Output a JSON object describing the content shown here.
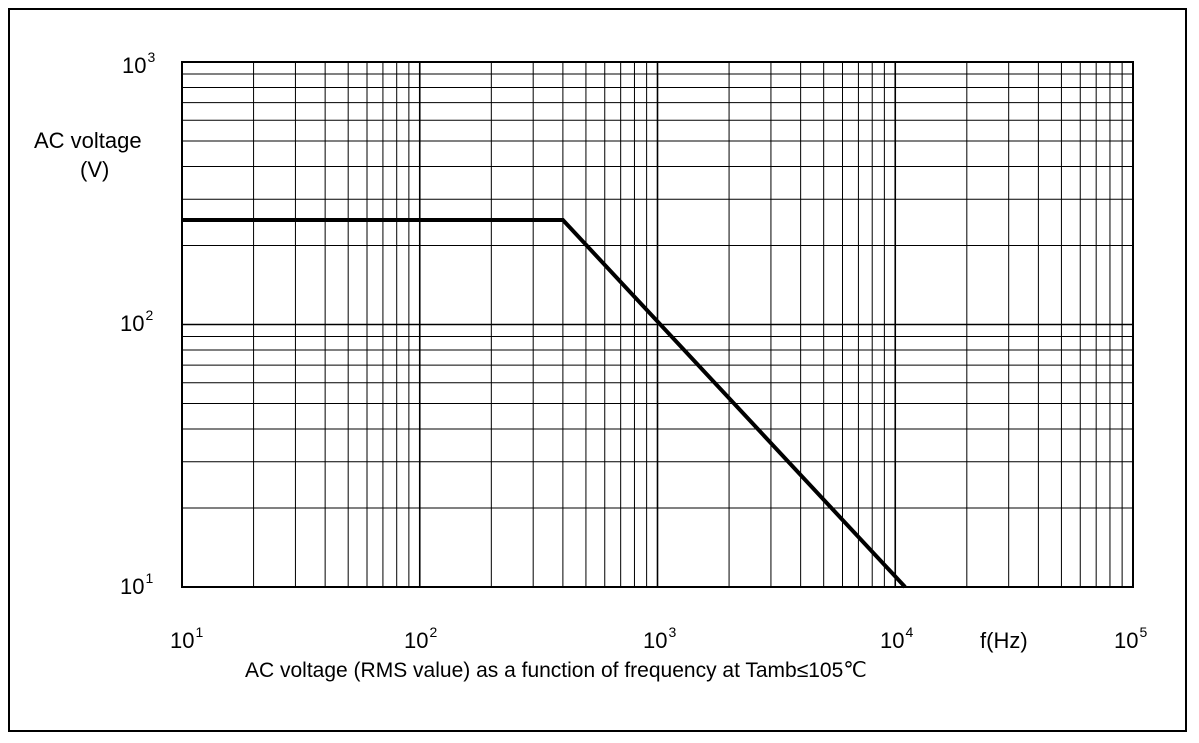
{
  "chart_data": {
    "type": "line",
    "title": "",
    "caption": "AC voltage (RMS value) as a function of frequency at Tamb≤105℃",
    "xlabel": "f(Hz)",
    "ylabel_line1": "AC voltage",
    "ylabel_line2": "(V)",
    "x_scale": "log",
    "y_scale": "log",
    "xlim": [
      10,
      100000
    ],
    "ylim": [
      10,
      1000
    ],
    "grid": true,
    "x_ticks": [
      {
        "base": "10",
        "exp": "1"
      },
      {
        "base": "10",
        "exp": "2"
      },
      {
        "base": "10",
        "exp": "3"
      },
      {
        "base": "10",
        "exp": "4"
      },
      {
        "base": "10",
        "exp": "5"
      }
    ],
    "y_ticks": [
      {
        "base": "10",
        "exp": "1"
      },
      {
        "base": "10",
        "exp": "2"
      },
      {
        "base": "10",
        "exp": "3"
      }
    ],
    "series": [
      {
        "x": [
          10,
          400,
          11000
        ],
        "y": [
          250,
          250,
          10
        ],
        "color": "#000000"
      }
    ]
  }
}
